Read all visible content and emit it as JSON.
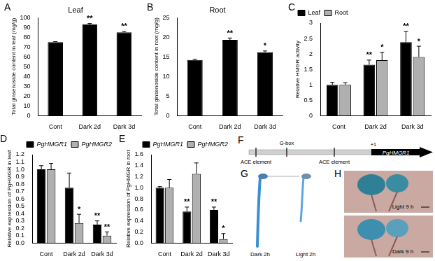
{
  "chart_data": [
    {
      "panel_label": "A",
      "type": "bar",
      "title": "Leaf",
      "y_label": "Total ginsenoside content in leaf (mg/g)",
      "categories": [
        "Cont",
        "Dark 2d",
        "Dark 3d"
      ],
      "values": [
        75,
        93,
        85
      ],
      "errors": [
        0.5,
        1,
        1
      ],
      "annotations": [
        null,
        "**",
        "**"
      ],
      "color": "#000000",
      "ylim": [
        0,
        100
      ],
      "yticks": [
        0,
        10,
        20,
        30,
        40,
        50,
        60,
        70,
        80,
        90,
        100
      ],
      "grid": false
    },
    {
      "panel_label": "B",
      "type": "bar",
      "title": "Root",
      "y_label": "Total ginsenoside content in root (mg/g)",
      "categories": [
        "Cont",
        "Dark 2d",
        "Dark 3d"
      ],
      "values": [
        14.2,
        19.3,
        16.2
      ],
      "errors": [
        0.2,
        0.5,
        0.3
      ],
      "annotations": [
        null,
        "**",
        "*"
      ],
      "color": "#000000",
      "ylim": [
        0,
        25
      ],
      "yticks": [
        0,
        5,
        10,
        15,
        20,
        25
      ],
      "grid": false
    },
    {
      "panel_label": "C",
      "type": "bar",
      "y_label": "Relative HMGR activity",
      "categories": [
        "Cont",
        "Dark 2d",
        "Dark 3d"
      ],
      "series": [
        {
          "name": "Leaf",
          "color": "#000000",
          "values": [
            1.0,
            1.65,
            2.38
          ],
          "errors": [
            0.08,
            0.15,
            0.35
          ],
          "annotations": [
            null,
            "**",
            "**"
          ]
        },
        {
          "name": "Root",
          "color": "#b0b0b0",
          "values": [
            1.0,
            1.8,
            1.9
          ],
          "errors": [
            0.07,
            0.25,
            0.35
          ],
          "annotations": [
            null,
            "*",
            "*"
          ]
        }
      ],
      "ylim": [
        0,
        3
      ],
      "yticks": [
        0,
        0.5,
        1,
        1.5,
        2,
        2.5,
        3
      ],
      "grid": false,
      "legend": "upper left"
    },
    {
      "panel_label": "D",
      "type": "bar",
      "y_label": "Relative expression of PgHMGR in leaf",
      "categories": [
        "Cont",
        "Dark 2d",
        "Dark 3d"
      ],
      "series": [
        {
          "name": "PgHMGR1",
          "color": "#000000",
          "values": [
            1.0,
            0.75,
            0.25
          ],
          "errors": [
            0.05,
            0.2,
            0.05
          ],
          "annotations": [
            null,
            null,
            "**"
          ]
        },
        {
          "name": "PgHMGR2",
          "color": "#b0b0b0",
          "values": [
            1.0,
            0.27,
            0.1
          ],
          "errors": [
            0.08,
            0.12,
            0.05
          ],
          "annotations": [
            null,
            "*",
            "**"
          ]
        }
      ],
      "ylim": [
        0,
        1.2
      ],
      "yticks": [
        {
          "value": 0,
          "label": "0.0"
        },
        {
          "value": 0.1,
          "label": "0.1"
        },
        {
          "value": 0.2,
          "label": "0.2"
        },
        {
          "value": 0.3,
          "label": "0.3"
        },
        {
          "value": 0.4,
          "label": "0.4"
        },
        {
          "value": 0.5,
          "label": "0.5"
        },
        {
          "value": 0.6,
          "label": "0.6"
        },
        {
          "value": 0.7,
          "label": "0.7"
        },
        {
          "value": 0.8,
          "label": "0.8"
        },
        {
          "value": 0.9,
          "label": "0.9"
        },
        {
          "value": 1,
          "label": "1.0"
        },
        {
          "value": 1.1,
          "label": "1.1"
        },
        {
          "value": 1.2,
          "label": "1.2"
        }
      ],
      "grid": false,
      "legend": "upper right"
    },
    {
      "panel_label": "E",
      "type": "bar",
      "y_label": "Relative expression of PgHMGR in root",
      "categories": [
        "Cont",
        "Dark 2d",
        "Dark 3d"
      ],
      "series": [
        {
          "name": "PgHMGR1",
          "color": "#000000",
          "values": [
            1.0,
            0.57,
            0.6
          ],
          "errors": [
            0.02,
            0.08,
            0.05
          ],
          "annotations": [
            null,
            "**",
            "**"
          ]
        },
        {
          "name": "PgHMGR2",
          "color": "#b0b0b0",
          "values": [
            1.0,
            1.25,
            0.07
          ],
          "errors": [
            0.15,
            0.2,
            0.1
          ],
          "annotations": [
            null,
            null,
            "*"
          ]
        }
      ],
      "ylim": [
        0,
        1.6
      ],
      "yticks": [
        {
          "value": 0,
          "label": "0.0"
        },
        {
          "value": 0.2,
          "label": "0.2"
        },
        {
          "value": 0.4,
          "label": "0.4"
        },
        {
          "value": 0.6,
          "label": "0.6"
        },
        {
          "value": 0.8,
          "label": "0.8"
        },
        {
          "value": 1,
          "label": "1.0"
        },
        {
          "value": 1.2,
          "label": "1.2"
        },
        {
          "value": 1.4,
          "label": "1.4"
        },
        {
          "value": 1.6,
          "label": "1.6"
        }
      ],
      "grid": false,
      "legend": "upper right"
    }
  ],
  "diagram": {
    "panel_label": "F",
    "elements": [
      "ACE element",
      "G-box",
      "ACE element"
    ],
    "tss": "+1",
    "gene": "PgHMGR1"
  },
  "photos": [
    {
      "panel_label": "G",
      "labels": [
        "Dark 2h",
        "Light 2h"
      ]
    },
    {
      "panel_label": "H",
      "labels": [
        "Light 9 h",
        "Dark 9 h"
      ]
    }
  ]
}
